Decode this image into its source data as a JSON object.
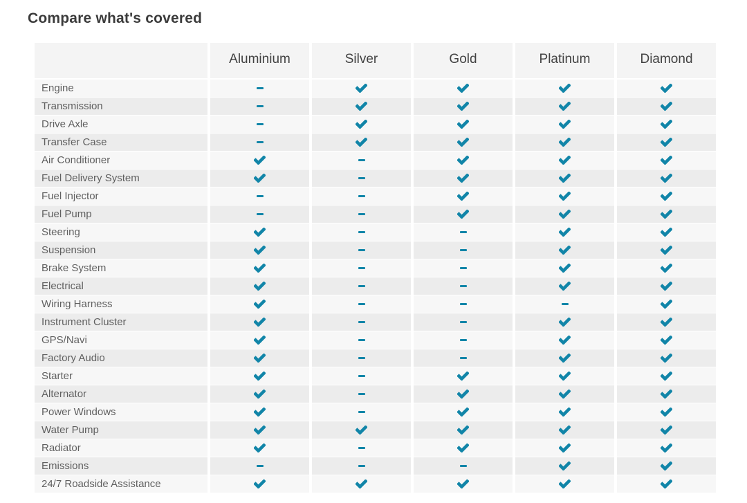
{
  "page": {
    "title": "Compare what's covered"
  },
  "table": {
    "columns": [
      "Aluminium",
      "Silver",
      "Gold",
      "Platinum",
      "Diamond"
    ],
    "rows": [
      {
        "label": "Engine",
        "coverage": [
          "dash",
          "check",
          "check",
          "check",
          "check"
        ]
      },
      {
        "label": "Transmission",
        "coverage": [
          "dash",
          "check",
          "check",
          "check",
          "check"
        ]
      },
      {
        "label": "Drive Axle",
        "coverage": [
          "dash",
          "check",
          "check",
          "check",
          "check"
        ]
      },
      {
        "label": "Transfer Case",
        "coverage": [
          "dash",
          "check",
          "check",
          "check",
          "check"
        ]
      },
      {
        "label": "Air Conditioner",
        "coverage": [
          "check",
          "dash",
          "check",
          "check",
          "check"
        ]
      },
      {
        "label": "Fuel Delivery System",
        "coverage": [
          "check",
          "dash",
          "check",
          "check",
          "check"
        ]
      },
      {
        "label": "Fuel Injector",
        "coverage": [
          "dash",
          "dash",
          "check",
          "check",
          "check"
        ]
      },
      {
        "label": "Fuel Pump",
        "coverage": [
          "dash",
          "dash",
          "check",
          "check",
          "check"
        ]
      },
      {
        "label": "Steering",
        "coverage": [
          "check",
          "dash",
          "dash",
          "check",
          "check"
        ]
      },
      {
        "label": "Suspension",
        "coverage": [
          "check",
          "dash",
          "dash",
          "check",
          "check"
        ]
      },
      {
        "label": "Brake System",
        "coverage": [
          "check",
          "dash",
          "dash",
          "check",
          "check"
        ]
      },
      {
        "label": "Electrical",
        "coverage": [
          "check",
          "dash",
          "dash",
          "check",
          "check"
        ]
      },
      {
        "label": "Wiring Harness",
        "coverage": [
          "check",
          "dash",
          "dash",
          "dash",
          "check"
        ]
      },
      {
        "label": "Instrument Cluster",
        "coverage": [
          "check",
          "dash",
          "dash",
          "check",
          "check"
        ]
      },
      {
        "label": "GPS/Navi",
        "coverage": [
          "check",
          "dash",
          "dash",
          "check",
          "check"
        ]
      },
      {
        "label": "Factory Audio",
        "coverage": [
          "check",
          "dash",
          "dash",
          "check",
          "check"
        ]
      },
      {
        "label": "Starter",
        "coverage": [
          "check",
          "dash",
          "check",
          "check",
          "check"
        ]
      },
      {
        "label": "Alternator",
        "coverage": [
          "check",
          "dash",
          "check",
          "check",
          "check"
        ]
      },
      {
        "label": "Power Windows",
        "coverage": [
          "check",
          "dash",
          "check",
          "check",
          "check"
        ]
      },
      {
        "label": "Water Pump",
        "coverage": [
          "check",
          "check",
          "check",
          "check",
          "check"
        ]
      },
      {
        "label": "Radiator",
        "coverage": [
          "check",
          "dash",
          "check",
          "check",
          "check"
        ]
      },
      {
        "label": "Emissions",
        "coverage": [
          "dash",
          "dash",
          "dash",
          "check",
          "check"
        ]
      },
      {
        "label": "24/7 Roadside Assistance",
        "coverage": [
          "check",
          "check",
          "check",
          "check",
          "check"
        ]
      }
    ]
  },
  "colors": {
    "accent": "#1185a8",
    "title_text": "#3b3b3b",
    "header_text": "#424242",
    "row_label_text": "#5f5f5f",
    "row_bg_light": "#f7f7f7",
    "row_bg_dark": "#ececec",
    "header_bg": "#f4f4f4"
  },
  "icons": {
    "check": "check-icon",
    "dash": "dash-icon"
  }
}
